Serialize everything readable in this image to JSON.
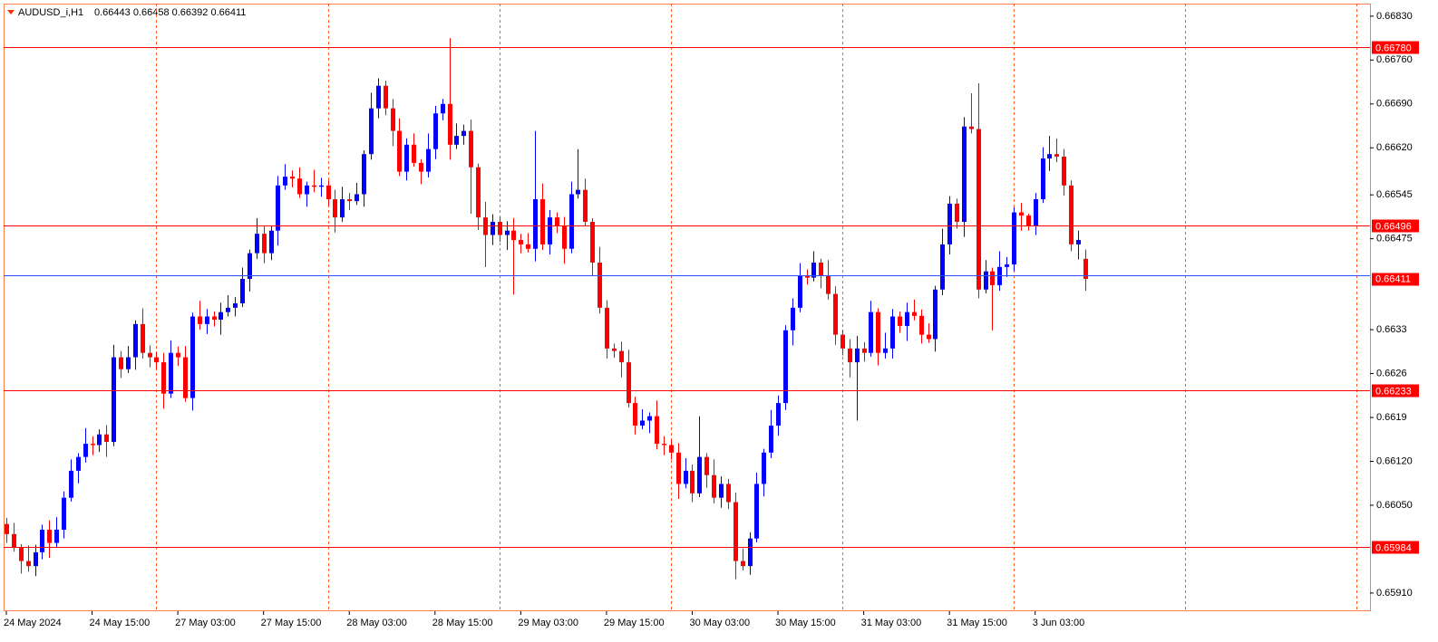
{
  "chart_data": {
    "type": "candlestick",
    "symbol": "AUDUSD_i,H1",
    "quote": "0.66443 0.66458 0.66392 0.66411",
    "up_color": "#0000ff",
    "down_color": "#ff0000",
    "ylim": [
      0.65881,
      0.6685
    ],
    "yticks": [
      {
        "value": 0.6683,
        "label": "0.66830"
      },
      {
        "value": 0.6676,
        "label": "0.66760"
      },
      {
        "value": 0.6669,
        "label": "0.66690"
      },
      {
        "value": 0.6662,
        "label": "0.66620"
      },
      0.66545,
      0.66475,
      0.6633,
      0.6626,
      0.6619,
      {
        "value": 0.6612,
        "label": "0.66120"
      },
      {
        "value": 0.6605,
        "label": "0.66050"
      },
      {
        "value": 0.6591,
        "label": "0.65910"
      }
    ],
    "xticks": [
      {
        "value": 0,
        "label": "24 May 2024"
      },
      {
        "value": 12,
        "label": "24 May 15:00"
      },
      {
        "value": 24,
        "label": "27 May 03:00"
      },
      {
        "value": 36,
        "label": "27 May 15:00"
      },
      {
        "value": 48,
        "label": "28 May 03:00"
      },
      {
        "value": 60,
        "label": "28 May 15:00"
      },
      {
        "value": 72,
        "label": "29 May 03:00"
      },
      {
        "value": 84,
        "label": "29 May 15:00"
      },
      {
        "value": 96,
        "label": "30 May 03:00"
      },
      {
        "value": 108,
        "label": "30 May 15:00"
      },
      {
        "value": 120,
        "label": "31 May 03:00"
      },
      {
        "value": 132,
        "label": "31 May 15:00"
      },
      {
        "value": 144,
        "label": "3 Jun 03:00"
      }
    ],
    "levels": [
      {
        "value": 0.6678,
        "label": "0.66780"
      },
      {
        "value": 0.66496,
        "label": "0.66496"
      },
      {
        "value": 0.66233,
        "label": "0.66233"
      },
      {
        "value": 0.65984,
        "label": "0.65984"
      }
    ],
    "bid": {
      "value": 0.66411,
      "label": "0.66411"
    },
    "open": [
      0.6602,
      0.66004,
      0.65982,
      0.65961,
      0.65953,
      0.65975,
      0.66011,
      0.6599,
      0.66011,
      0.66062,
      0.66105,
      0.66127,
      0.66148,
      0.66146,
      0.66163,
      0.66151,
      0.66286,
      0.66267,
      0.66286,
      0.66339,
      0.66293,
      0.66286,
      0.66278,
      0.66228,
      0.66293,
      0.66286,
      0.66221,
      0.66351,
      0.66339,
      0.66351,
      0.66346,
      0.66358,
      0.66365,
      0.66372,
      0.66411,
      0.66452,
      0.66483,
      0.66452,
      0.66488,
      0.6656,
      0.66574,
      0.66571,
      0.66546,
      0.6656,
      0.66558,
      0.6656,
      0.66538,
      0.66509,
      0.66538,
      0.66535,
      0.66546,
      0.6661,
      0.66683,
      0.66719,
      0.66683,
      0.66647,
      0.66582,
      0.66625,
      0.66596,
      0.66582,
      0.66618,
      0.66675,
      0.6669,
      0.66625,
      0.66639,
      0.66647,
      0.66589,
      0.66509,
      0.66481,
      0.66502,
      0.66481,
      0.66488,
      0.66473,
      0.66466,
      0.66459,
      0.66538,
      0.66466,
      0.66509,
      0.66495,
      0.66459,
      0.66546,
      0.66553,
      0.66502,
      0.66437,
      0.66365,
      0.663,
      0.66296,
      0.66278,
      0.66213,
      0.66177,
      0.66185,
      0.66192,
      0.66148,
      0.66146,
      0.66134,
      0.66084,
      0.66105,
      0.66069,
      0.66127,
      0.66098,
      0.66062,
      0.66084,
      0.66055,
      0.65961,
      0.65953,
      0.65997,
      0.66084,
      0.66134,
      0.66177,
      0.66213,
      0.66329,
      0.66365,
      0.66416,
      0.66413,
      0.66437,
      0.66416,
      0.66387,
      0.66322,
      0.663,
      0.66278,
      0.663,
      0.66293,
      0.66358,
      0.66293,
      0.663,
      0.66351,
      0.66336,
      0.66358,
      0.66352,
      0.66322,
      0.66315,
      0.66394,
      0.66466,
      0.66531,
      0.66502,
      0.66654,
      0.6665,
      0.66394,
      0.66423,
      0.66401,
      0.6643,
      0.66434,
      0.66517,
      0.66512,
      0.66495,
      0.66538,
      0.66603,
      0.6661,
      0.66606,
      0.6656,
      0.66466,
      0.66443
    ],
    "high": [
      0.6603,
      0.66022,
      0.65988,
      0.65986,
      0.65987,
      0.66019,
      0.66026,
      0.66031,
      0.66072,
      0.66123,
      0.66133,
      0.66173,
      0.6616,
      0.66171,
      0.66178,
      0.66306,
      0.66296,
      0.66304,
      0.66345,
      0.66364,
      0.66305,
      0.66294,
      0.66293,
      0.66313,
      0.66303,
      0.66304,
      0.66357,
      0.66376,
      0.66363,
      0.66359,
      0.66373,
      0.66385,
      0.66382,
      0.66429,
      0.66458,
      0.66508,
      0.66495,
      0.66496,
      0.66575,
      0.66594,
      0.66584,
      0.66589,
      0.66566,
      0.66585,
      0.66572,
      0.66568,
      0.66553,
      0.66558,
      0.66548,
      0.66564,
      0.66616,
      0.66708,
      0.66731,
      0.66727,
      0.66698,
      0.66667,
      0.66635,
      0.66643,
      0.66602,
      0.66643,
      0.66687,
      0.66698,
      0.66795,
      0.66659,
      0.66657,
      0.66665,
      0.66595,
      0.66534,
      0.66514,
      0.6651,
      0.66503,
      0.66508,
      0.66483,
      0.66484,
      0.66647,
      0.66563,
      0.66521,
      0.66517,
      0.6651,
      0.66566,
      0.66618,
      0.66571,
      0.66508,
      0.66462,
      0.66377,
      0.66308,
      0.66311,
      0.66298,
      0.66223,
      0.66203,
      0.66198,
      0.66217,
      0.6616,
      0.66154,
      0.66149,
      0.66125,
      0.66115,
      0.66192,
      0.66133,
      0.66123,
      0.66096,
      0.66092,
      0.6607,
      0.65981,
      0.66007,
      0.66102,
      0.6614,
      0.66202,
      0.66225,
      0.66337,
      0.6638,
      0.66436,
      0.66426,
      0.66455,
      0.66443,
      0.66441,
      0.66399,
      0.6633,
      0.66315,
      0.6632,
      0.6631,
      0.66376,
      0.66364,
      0.66325,
      0.66363,
      0.66359,
      0.66373,
      0.66378,
      0.66362,
      0.6634,
      0.664,
      0.66491,
      0.66543,
      0.66539,
      0.66669,
      0.66707,
      0.66723,
      0.66441,
      0.66429,
      0.66455,
      0.66446,
      0.66525,
      0.66532,
      0.66515,
      0.66548,
      0.66621,
      0.66639,
      0.66635,
      0.66618,
      0.66568,
      0.66488,
      0.66458
    ],
    "low": [
      0.6599,
      0.65976,
      0.65941,
      0.65944,
      0.65937,
      0.65964,
      0.65966,
      0.65983,
      0.65997,
      0.66056,
      0.66085,
      0.66118,
      0.6613,
      0.66135,
      0.66127,
      0.66144,
      0.66253,
      0.66261,
      0.66266,
      0.66284,
      0.6627,
      0.66267,
      0.66204,
      0.66221,
      0.66272,
      0.66215,
      0.66201,
      0.6633,
      0.66323,
      0.66335,
      0.66322,
      0.66351,
      0.66351,
      0.66366,
      0.66391,
      0.66443,
      0.66436,
      0.66441,
      0.66464,
      0.66553,
      0.66557,
      0.6654,
      0.66526,
      0.66549,
      0.66542,
      0.66527,
      0.66485,
      0.66502,
      0.66521,
      0.66529,
      0.66526,
      0.66601,
      0.66667,
      0.66672,
      0.66623,
      0.66575,
      0.66568,
      0.6659,
      0.66562,
      0.66573,
      0.66602,
      0.66664,
      0.66601,
      0.66618,
      0.66625,
      0.66515,
      0.66489,
      0.6643,
      0.66465,
      0.6647,
      0.66457,
      0.66386,
      0.66452,
      0.66453,
      0.66439,
      0.66457,
      0.6645,
      0.66484,
      0.66435,
      0.66452,
      0.66539,
      0.66496,
      0.66417,
      0.66356,
      0.66284,
      0.66285,
      0.66254,
      0.66206,
      0.66163,
      0.66171,
      0.66165,
      0.66139,
      0.6613,
      0.66123,
      0.6606,
      0.66077,
      0.66055,
      0.66063,
      0.66078,
      0.66053,
      0.66046,
      0.66044,
      0.65932,
      0.65946,
      0.65939,
      0.65991,
      0.66064,
      0.66125,
      0.66161,
      0.66202,
      0.66305,
      0.66358,
      0.66402,
      0.66407,
      0.66396,
      0.66378,
      0.66306,
      0.66289,
      0.66254,
      0.66185,
      0.66279,
      0.66287,
      0.66273,
      0.66284,
      0.66284,
      0.66325,
      0.66312,
      0.66345,
      0.66308,
      0.66309,
      0.66295,
      0.66385,
      0.6645,
      0.66491,
      0.66478,
      0.66643,
      0.6638,
      0.66388,
      0.66329,
      0.66392,
      0.66414,
      0.66423,
      0.66488,
      0.66488,
      0.66481,
      0.66532,
      0.66583,
      0.66597,
      0.66544,
      0.66455,
      0.66442,
      0.66392
    ],
    "close": [
      0.66004,
      0.65982,
      0.65961,
      0.65953,
      0.65975,
      0.66011,
      0.6599,
      0.66011,
      0.66062,
      0.66105,
      0.66127,
      0.66148,
      0.66146,
      0.66163,
      0.66151,
      0.66286,
      0.66267,
      0.66286,
      0.66339,
      0.66293,
      0.66286,
      0.66278,
      0.66228,
      0.66293,
      0.66286,
      0.66221,
      0.66351,
      0.66339,
      0.66351,
      0.66346,
      0.66358,
      0.66365,
      0.66372,
      0.66411,
      0.66452,
      0.66483,
      0.66452,
      0.66488,
      0.6656,
      0.66574,
      0.66571,
      0.66546,
      0.6656,
      0.66558,
      0.6656,
      0.66538,
      0.66509,
      0.66538,
      0.66535,
      0.66546,
      0.6661,
      0.66683,
      0.66719,
      0.66683,
      0.66647,
      0.66582,
      0.66625,
      0.66596,
      0.66582,
      0.66618,
      0.66675,
      0.6669,
      0.66625,
      0.66639,
      0.66647,
      0.66589,
      0.66509,
      0.66481,
      0.66502,
      0.66481,
      0.66488,
      0.66473,
      0.66466,
      0.66459,
      0.66538,
      0.66466,
      0.66509,
      0.66495,
      0.66459,
      0.66546,
      0.66553,
      0.66502,
      0.66437,
      0.66365,
      0.663,
      0.66296,
      0.66278,
      0.66213,
      0.66177,
      0.66185,
      0.66192,
      0.66148,
      0.66146,
      0.66134,
      0.66084,
      0.66105,
      0.66069,
      0.66127,
      0.66098,
      0.66062,
      0.66084,
      0.66055,
      0.65961,
      0.65953,
      0.65997,
      0.66084,
      0.66134,
      0.66177,
      0.66213,
      0.66329,
      0.66365,
      0.66416,
      0.66413,
      0.66437,
      0.66416,
      0.66387,
      0.66322,
      0.663,
      0.66278,
      0.663,
      0.66293,
      0.66358,
      0.66293,
      0.663,
      0.66351,
      0.66336,
      0.66358,
      0.66352,
      0.66322,
      0.66315,
      0.66394,
      0.66466,
      0.66531,
      0.66502,
      0.66654,
      0.6665,
      0.66394,
      0.66423,
      0.66401,
      0.6643,
      0.66434,
      0.66517,
      0.66512,
      0.66495,
      0.66538,
      0.66603,
      0.6661,
      0.66606,
      0.6656,
      0.66466,
      0.66473,
      0.66411
    ]
  }
}
